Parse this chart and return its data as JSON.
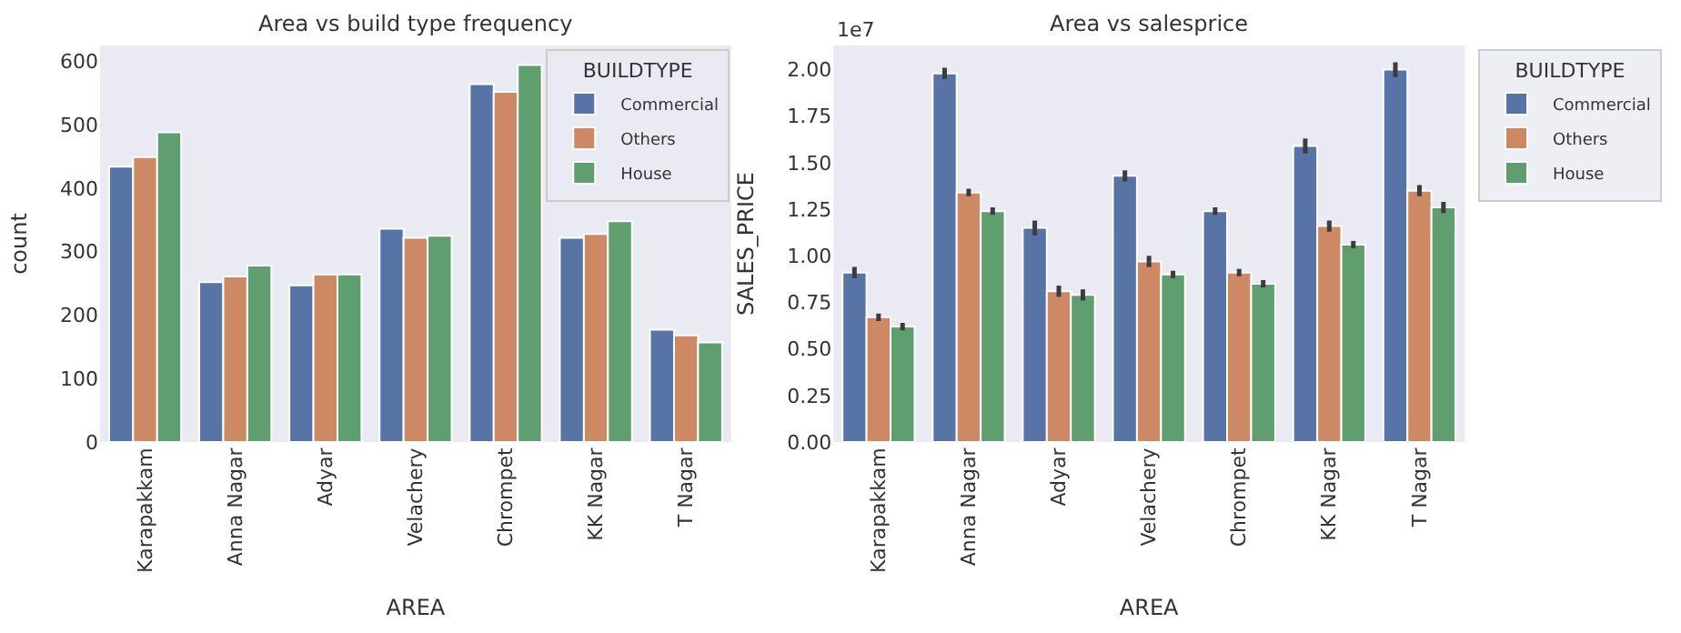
{
  "chart_data": [
    {
      "type": "bar",
      "title": "Area vs build type frequency",
      "xlabel": "AREA",
      "ylabel": "count",
      "legend_title": "BUILDTYPE",
      "legend": "top right",
      "grid": false,
      "categories": [
        "Karapakkam",
        "Anna Nagar",
        "Adyar",
        "Velachery",
        "Chrompet",
        "KK Nagar",
        "T Nagar"
      ],
      "ylim": [
        0,
        625
      ],
      "yticks": [
        0,
        100,
        200,
        300,
        400,
        500,
        600
      ],
      "series": [
        {
          "name": "Commercial",
          "color": "#5874a6",
          "values": [
            434,
            252,
            247,
            336,
            564,
            322,
            177
          ]
        },
        {
          "name": "Others",
          "color": "#cc8963",
          "values": [
            449,
            261,
            264,
            322,
            552,
            328,
            168
          ]
        },
        {
          "name": "House",
          "color": "#5f9e6e",
          "values": [
            488,
            278,
            264,
            325,
            594,
            348,
            157
          ]
        }
      ]
    },
    {
      "type": "bar",
      "title": "Area vs salesprice",
      "xlabel": "AREA",
      "ylabel": "SALES_PRICE",
      "legend_title": "BUILDTYPE",
      "legend": "right",
      "grid": false,
      "annotations": [
        "1e7"
      ],
      "categories": [
        "Karapakkam",
        "Anna Nagar",
        "Adyar",
        "Velachery",
        "Chrompet",
        "KK Nagar",
        "T Nagar"
      ],
      "ylim": [
        0,
        2.13
      ],
      "yticks": [
        {
          "value": 0,
          "label": "0.00"
        },
        {
          "value": 0.25,
          "label": "0.25"
        },
        {
          "value": 0.5,
          "label": "0.50"
        },
        {
          "value": 0.75,
          "label": "0.75"
        },
        {
          "value": 1,
          "label": "1.00"
        },
        {
          "value": 1.25,
          "label": "1.25"
        },
        {
          "value": 1.5,
          "label": "1.50"
        },
        {
          "value": 1.75,
          "label": "1.75"
        },
        {
          "value": 2,
          "label": "2.00"
        }
      ],
      "series": [
        {
          "name": "Commercial",
          "color": "#5874a6",
          "values": [
            0.91,
            1.98,
            1.15,
            1.43,
            1.24,
            1.59,
            2.0
          ],
          "errors": [
            0.03,
            0.03,
            0.04,
            0.03,
            0.02,
            0.04,
            0.04
          ]
        },
        {
          "name": "Others",
          "color": "#cc8963",
          "values": [
            0.67,
            1.34,
            0.81,
            0.97,
            0.91,
            1.16,
            1.35
          ],
          "errors": [
            0.02,
            0.02,
            0.03,
            0.03,
            0.02,
            0.03,
            0.03
          ]
        },
        {
          "name": "House",
          "color": "#5f9e6e",
          "values": [
            0.62,
            1.24,
            0.79,
            0.9,
            0.85,
            1.06,
            1.26
          ],
          "errors": [
            0.02,
            0.02,
            0.03,
            0.02,
            0.02,
            0.02,
            0.03
          ]
        }
      ]
    }
  ]
}
